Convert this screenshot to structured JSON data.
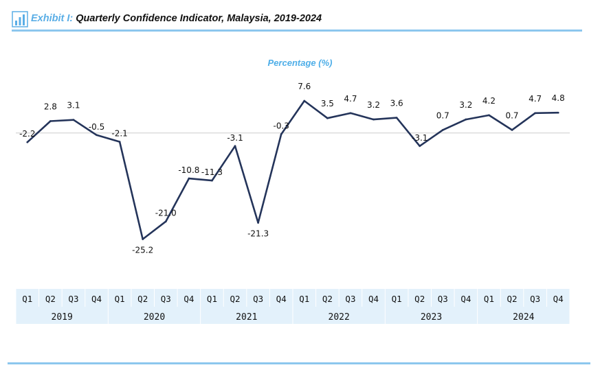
{
  "header": {
    "exhibit_label": "Exhibit I:",
    "title": "Quarterly Confidence Indicator, Malaysia, 2019-2024",
    "icon": "bar-chart-icon"
  },
  "colors": {
    "accent": "#5aaee6",
    "line": "#24345a",
    "axis_band": "#e3f1fb"
  },
  "chart_data": {
    "type": "line",
    "title": "Quarterly Confidence Indicator, Malaysia, 2019-2024",
    "subtitle": "Percentage (%)",
    "quarters": [
      "Q1",
      "Q2",
      "Q3",
      "Q4",
      "Q1",
      "Q2",
      "Q3",
      "Q4",
      "Q1",
      "Q2",
      "Q3",
      "Q4",
      "Q1",
      "Q2",
      "Q3",
      "Q4",
      "Q1",
      "Q2",
      "Q3",
      "Q4",
      "Q1",
      "Q2",
      "Q3",
      "Q4"
    ],
    "years": [
      "2019",
      "2020",
      "2021",
      "2022",
      "2023",
      "2024"
    ],
    "values": [
      -2.2,
      2.8,
      3.1,
      -0.5,
      -2.1,
      -25.2,
      -21.0,
      -10.8,
      -11.3,
      -3.1,
      -21.3,
      -0.3,
      7.6,
      3.5,
      4.7,
      3.2,
      3.6,
      -3.1,
      0.7,
      3.2,
      4.2,
      0.7,
      4.7,
      4.8
    ],
    "labels": [
      "-2.2",
      "2.8",
      "3.1",
      "-0.5",
      "-2.1",
      "-25.2",
      "-21.0",
      "-10.8",
      "-11.3",
      "-3.1",
      "-21.3",
      "-0.3",
      "7.6",
      "3.5",
      "4.7",
      "3.2",
      "3.6",
      "-3.1",
      "0.7",
      "3.2",
      "4.2",
      "0.7",
      "4.7",
      "4.8"
    ],
    "ylim": [
      -37,
      12
    ],
    "zero_line": true,
    "grid": false,
    "legend": "none"
  }
}
